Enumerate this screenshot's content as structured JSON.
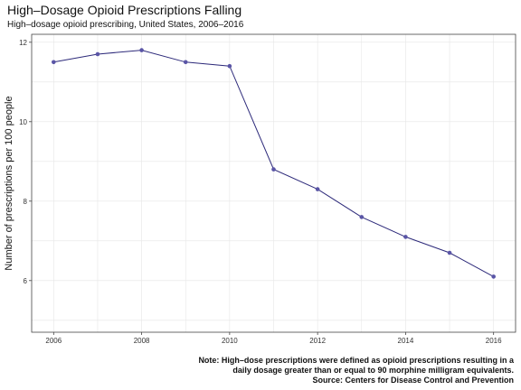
{
  "title": "High–Dosage Opioid Prescriptions Falling",
  "subtitle": "High–dosage opioid prescribing, United States, 2006–2016",
  "caption_lines": [
    "Note: High–dose prescriptions were defined as opioid prescriptions resulting in a",
    "daily dosage greater than or equal to 90 morphine milligram equivalents.",
    "Source: Centers for Disease Control and Prevention"
  ],
  "colors": {
    "line": "#2d2a7a",
    "point": "#5a55a6",
    "grid": "#e6e6e6"
  },
  "chart_data": {
    "type": "line",
    "title": "High–Dosage Opioid Prescriptions Falling",
    "subtitle": "High–dosage opioid prescribing, United States, 2006–2016",
    "xlabel": "",
    "ylabel": "Number of prescriptions per 100 people",
    "x": [
      2006,
      2007,
      2008,
      2009,
      2010,
      2011,
      2012,
      2013,
      2014,
      2015,
      2016
    ],
    "y": [
      11.5,
      11.7,
      11.8,
      11.5,
      11.4,
      8.8,
      8.3,
      7.6,
      7.1,
      6.7,
      6.1
    ],
    "xlim": [
      2005.5,
      2016.5
    ],
    "ylim": [
      4.7,
      12.2
    ],
    "xticks": [
      2006,
      2008,
      2010,
      2012,
      2014,
      2016
    ],
    "yticks": [
      6,
      8,
      10,
      12
    ],
    "grid": true,
    "legend": "none"
  }
}
